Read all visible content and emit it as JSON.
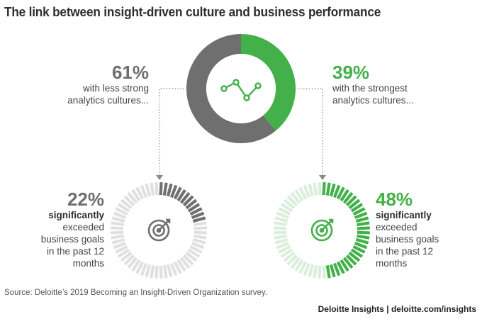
{
  "title": "The link between insight-driven culture and business performance",
  "source": "Source: Deloitte’s 2019 Becoming an Insight-Driven Organization survey.",
  "brand": "Deloitte Insights | deloitte.com/insights",
  "colors": {
    "gray": "#6f6f6f",
    "green": "#43b049",
    "light_gray": "#e0e0e0",
    "light_green": "#dbeedc"
  },
  "icons": {
    "top": "line-chart-icon",
    "bottom": "target-icon"
  },
  "top": {
    "left_pct": "61%",
    "left_desc": [
      "with less strong",
      "analytics cultures..."
    ],
    "right_pct": "39%",
    "right_desc": [
      "with the strongest",
      "analytics cultures..."
    ]
  },
  "bottom_left": {
    "pct": "22%",
    "bold": "significantly",
    "desc": [
      "exceeded",
      "business goals",
      "in the past 12",
      "months"
    ]
  },
  "bottom_right": {
    "pct": "48%",
    "bold": "significantly",
    "desc": [
      "exceeded",
      "business goals",
      "in the past 12",
      "months"
    ]
  },
  "chart_data": [
    {
      "type": "pie",
      "categories": [
        "with less strong analytics cultures",
        "with the strongest analytics cultures"
      ],
      "values": [
        61,
        39
      ]
    },
    {
      "type": "pie",
      "categories": [
        "significantly exceeded business goals",
        "other"
      ],
      "values": [
        22,
        78
      ]
    },
    {
      "type": "pie",
      "categories": [
        "significantly exceeded business goals",
        "other"
      ],
      "values": [
        48,
        52
      ]
    }
  ]
}
